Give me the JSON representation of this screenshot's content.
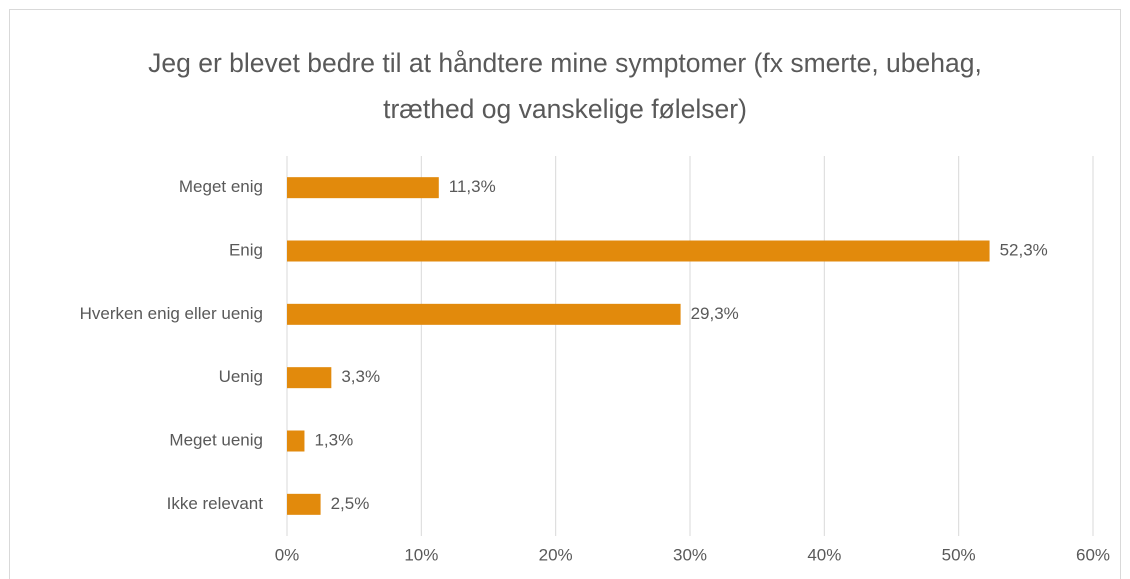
{
  "chart_data": {
    "type": "bar",
    "orientation": "horizontal",
    "title": "Jeg er blevet bedre til at håndtere mine symptomer (fx smerte, ubehag, træthed og vanskelige følelser)",
    "categories": [
      "Meget enig",
      "Enig",
      "Hverken enig eller uenig",
      "Uenig",
      "Meget uenig",
      "Ikke relevant"
    ],
    "values": [
      11.3,
      52.3,
      29.3,
      3.3,
      1.3,
      2.5
    ],
    "value_labels": [
      "11,3%",
      "52,3%",
      "29,3%",
      "3,3%",
      "1,3%",
      "2,5%"
    ],
    "color": "#e28a0c",
    "xlim": [
      0,
      60
    ],
    "xticks": [
      {
        "value": 0,
        "label": "0%"
      },
      {
        "value": 10,
        "label": "10%"
      },
      {
        "value": 20,
        "label": "20%"
      },
      {
        "value": 30,
        "label": "30%"
      },
      {
        "value": 40,
        "label": "40%"
      },
      {
        "value": 50,
        "label": "50%"
      },
      {
        "value": 60,
        "label": "60%"
      }
    ],
    "grid": true
  }
}
